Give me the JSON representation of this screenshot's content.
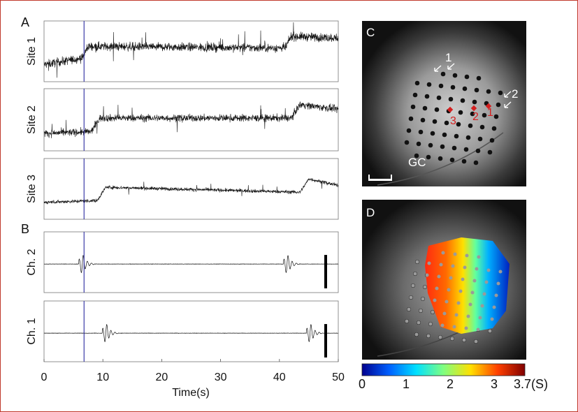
{
  "panels": {
    "A": "A",
    "B": "B",
    "C": "C",
    "D": "D"
  },
  "panel_A": {
    "rows": [
      {
        "label": "Site 1",
        "baseline": 0.0,
        "step1": 0.55,
        "step2": 0.85,
        "noise": 0.22
      },
      {
        "label": "Site 2",
        "baseline": 0.0,
        "step1": 0.45,
        "step2": 0.85,
        "noise": 0.18
      },
      {
        "label": "Site 3",
        "baseline": 0.0,
        "step1": 0.45,
        "step2": 0.7,
        "noise": 0.09
      }
    ],
    "stim_time_s": 6.8
  },
  "panel_B": {
    "rows": [
      {
        "label": "Ch. 2",
        "bursts_s": [
          6.5,
          41.3
        ]
      },
      {
        "label": "Ch. 1",
        "bursts_s": [
          10.5,
          45.2
        ]
      }
    ]
  },
  "chart_data": {
    "type": "line",
    "xlabel": "Time(s)",
    "xlim": [
      0,
      50
    ],
    "xticks": [
      "0",
      "10",
      "20",
      "30",
      "40",
      "50"
    ],
    "series": [
      {
        "name": "Site 1",
        "x": [
          0,
          6.5,
          7.5,
          41,
          42,
          50
        ],
        "y": [
          0.0,
          0.2,
          0.55,
          0.5,
          0.85,
          0.8
        ]
      },
      {
        "name": "Site 2",
        "x": [
          0,
          8,
          9.5,
          42,
          43.5,
          50
        ],
        "y": [
          0.0,
          0.05,
          0.45,
          0.45,
          0.85,
          0.7
        ]
      },
      {
        "name": "Site 3",
        "x": [
          0,
          9,
          10.5,
          43.5,
          45,
          50
        ],
        "y": [
          0.0,
          0.05,
          0.45,
          0.3,
          0.7,
          0.5
        ]
      },
      {
        "name": "Ch. 2",
        "x": [
          6.5,
          41.3
        ],
        "y": [
          1,
          1
        ]
      },
      {
        "name": "Ch. 1",
        "x": [
          10.5,
          45.2
        ],
        "y": [
          1,
          1
        ]
      }
    ]
  },
  "panel_C": {
    "arrow_labels": [
      "1",
      "2"
    ],
    "site_labels": [
      "3",
      "2",
      "1"
    ],
    "region_label": "GC"
  },
  "colorbar": {
    "ticks": [
      "0",
      "1",
      "2",
      "3",
      "3.7(S)"
    ],
    "range": [
      0,
      3.7
    ],
    "colors": [
      "#00008f",
      "#0060ff",
      "#00e0ff",
      "#80ff80",
      "#ffe000",
      "#ff4000",
      "#800000"
    ]
  }
}
